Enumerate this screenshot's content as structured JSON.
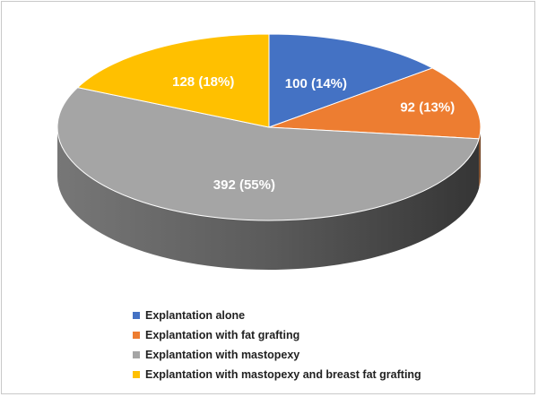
{
  "chart_data": {
    "type": "pie",
    "style": "3d",
    "title": "",
    "series": [
      {
        "name": "",
        "slices": [
          {
            "label": "Explantation alone",
            "value": 100,
            "percent": 14,
            "display": "100 (14%)",
            "color": "#4472c4"
          },
          {
            "label": "Explantation with fat grafting",
            "value": 92,
            "percent": 13,
            "display": "92 (13%)",
            "color": "#ed7d31"
          },
          {
            "label": "Explantation with mastopexy",
            "value": 392,
            "percent": 55,
            "display": "392 (55%)",
            "color": "#a5a5a5"
          },
          {
            "label": "Explantation with mastopexy and breast fat grafting",
            "value": 128,
            "percent": 18,
            "display": "128 (18%)",
            "color": "#ffc000"
          }
        ]
      }
    ],
    "legend_position": "bottom-left"
  }
}
